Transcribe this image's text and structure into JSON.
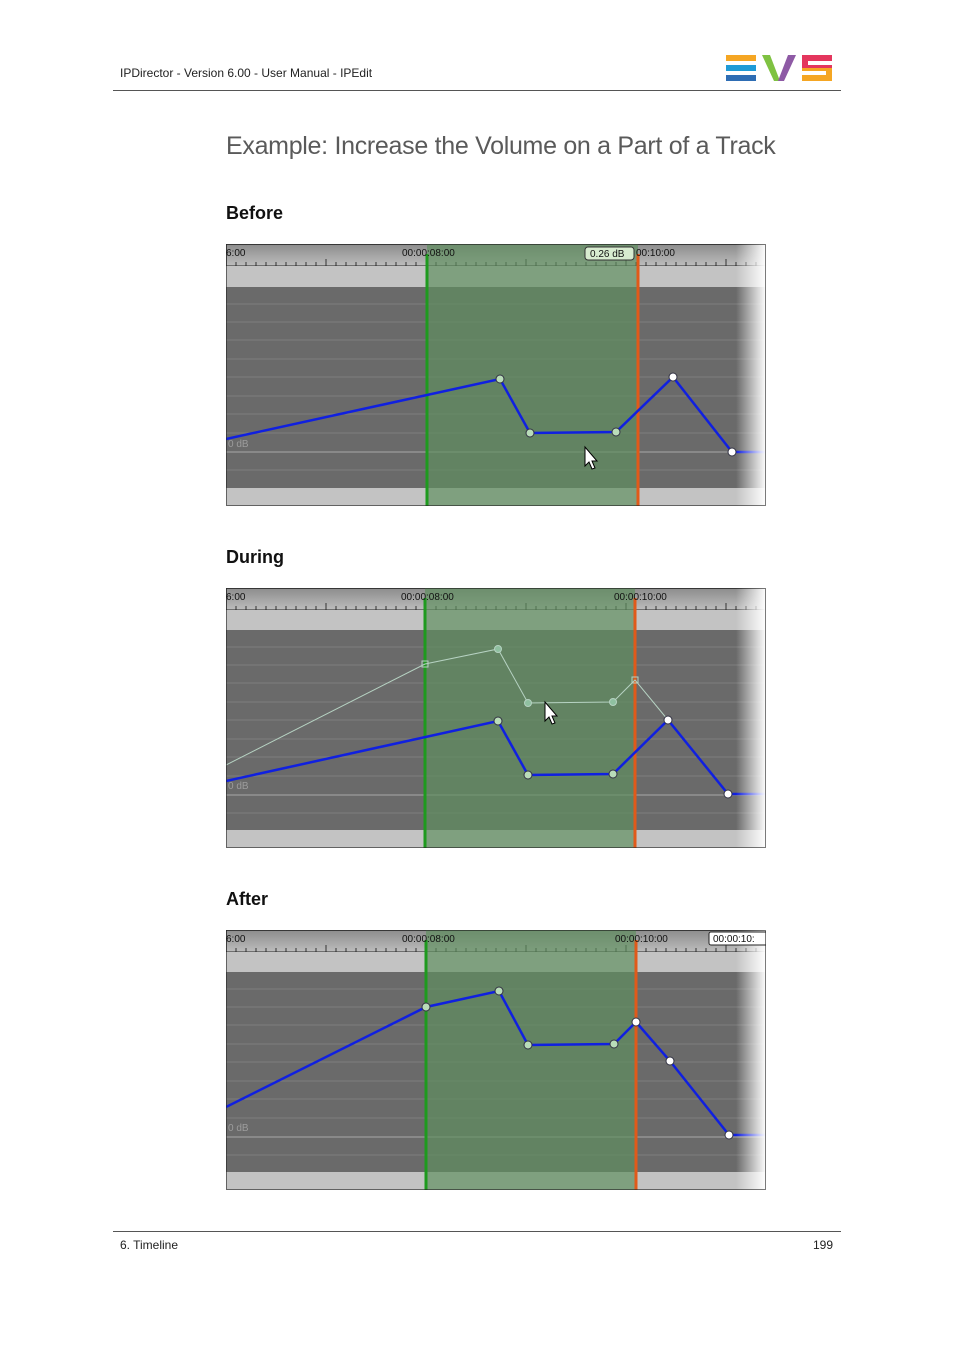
{
  "header": {
    "text": "IPDirector - Version 6.00 - User Manual - IPEdit",
    "logo_colors": {
      "bars": [
        "#f5a623",
        "#1f9bd7",
        "#2e6db4"
      ],
      "v": [
        "#7fc242",
        "#8e5aa5"
      ],
      "s": [
        "#e4365d",
        "#f5a623"
      ]
    }
  },
  "page_title": "Example: Increase the Volume on a Part of a Track",
  "sections": [
    {
      "label": "Before",
      "timecodes": {
        "left": "6:00",
        "mid": "00:00:08:00",
        "right": "00:10:00"
      },
      "badge": "0.26 dB",
      "db_label": "0 dB",
      "cursor_icon": "arrow-cursor-icon"
    },
    {
      "label": "During",
      "timecodes": {
        "left": "6:00",
        "mid": "00:00:08:00",
        "right": "00:00:10:00"
      },
      "db_label": "0 dB",
      "cursor_icon": "arrow-cursor-icon"
    },
    {
      "label": "After",
      "timecodes": {
        "left": "6:00",
        "mid": "00:00:08:00",
        "right": "00:00:10:00",
        "box": "00:00:10:"
      },
      "db_label": "0 dB"
    }
  ],
  "colors": {
    "selection": "#5f8f5f",
    "in_marker": "#1e9a1e",
    "out_marker": "#e05a1a",
    "volume_line": "#1020e0",
    "track_bg": "#6a6a6a"
  },
  "footer": {
    "chapter": "6. Timeline",
    "page_number": "199"
  }
}
